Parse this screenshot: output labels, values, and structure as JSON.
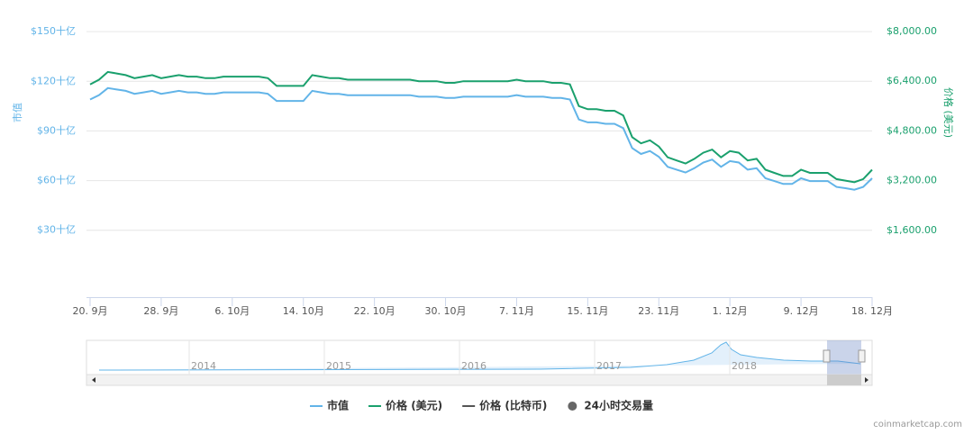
{
  "chart_data": {
    "type": "line",
    "y_axis_title": "市值",
    "y2_axis_title": "价格 (美元)",
    "categories": [
      "20. 9月",
      null,
      null,
      null,
      null,
      null,
      null,
      null,
      "28. 9月",
      null,
      null,
      null,
      null,
      null,
      null,
      null,
      "6. 10月",
      null,
      null,
      null,
      null,
      null,
      null,
      null,
      "14. 10月",
      null,
      null,
      null,
      null,
      null,
      null,
      null,
      "22. 10月",
      null,
      null,
      null,
      null,
      null,
      null,
      null,
      "30. 10月",
      null,
      null,
      null,
      null,
      null,
      null,
      null,
      "7. 11月",
      null,
      null,
      null,
      null,
      null,
      null,
      null,
      "15. 11月",
      null,
      null,
      null,
      null,
      null,
      null,
      null,
      "23. 11月",
      null,
      null,
      null,
      null,
      null,
      null,
      null,
      "1. 12月",
      null,
      null,
      null,
      null,
      null,
      null,
      null,
      "9. 12月",
      null,
      null,
      null,
      null,
      null,
      null,
      null,
      "18. 12月"
    ],
    "series": [
      {
        "name": "市值",
        "color": "#62b4e8",
        "axis": "y",
        "values": [
          109,
          111.6,
          115.9,
          115,
          114.2,
          112.4,
          113.3,
          114.2,
          112.4,
          113.3,
          114.2,
          113.3,
          113.3,
          112.4,
          112.4,
          113.3,
          113.3,
          113.3,
          113.3,
          113.3,
          112.4,
          108.1,
          108.1,
          108.1,
          108.1,
          114.2,
          113.3,
          112.4,
          112.4,
          111.6,
          111.6,
          111.6,
          111.6,
          111.6,
          111.6,
          111.6,
          111.6,
          110.7,
          110.7,
          110.7,
          109.9,
          109.9,
          110.7,
          110.7,
          110.7,
          110.7,
          110.7,
          110.7,
          111.6,
          110.7,
          110.7,
          110.7,
          109.9,
          109.9,
          109,
          96.9,
          95.2,
          95.2,
          94.3,
          94.3,
          91.7,
          79.6,
          76.1,
          77.9,
          74.4,
          68.3,
          66.6,
          64.9,
          67.5,
          70.9,
          72.7,
          68.3,
          71.8,
          70.9,
          66.6,
          67.5,
          61.4,
          59.7,
          58,
          58,
          61.4,
          59.7,
          59.7,
          59.7,
          56.2,
          55.4,
          54.5,
          56.2,
          61.4
        ]
      },
      {
        "name": "价格 (美元)",
        "color": "#1aa06d",
        "axis": "y2",
        "values": [
          6300,
          6450,
          6700,
          6650,
          6600,
          6500,
          6550,
          6600,
          6500,
          6550,
          6600,
          6550,
          6550,
          6500,
          6500,
          6550,
          6550,
          6550,
          6550,
          6550,
          6500,
          6250,
          6250,
          6250,
          6250,
          6600,
          6550,
          6500,
          6500,
          6450,
          6450,
          6450,
          6450,
          6450,
          6450,
          6450,
          6450,
          6400,
          6400,
          6400,
          6350,
          6350,
          6400,
          6400,
          6400,
          6400,
          6400,
          6400,
          6450,
          6400,
          6400,
          6400,
          6350,
          6350,
          6300,
          5600,
          5500,
          5500,
          5450,
          5450,
          5300,
          4600,
          4400,
          4500,
          4300,
          3950,
          3850,
          3750,
          3900,
          4100,
          4200,
          3950,
          4150,
          4100,
          3850,
          3900,
          3550,
          3450,
          3350,
          3350,
          3550,
          3450,
          3450,
          3450,
          3250,
          3200,
          3150,
          3250,
          3550
        ]
      }
    ],
    "legend_only_series": [
      {
        "name": "价格 (比特币)",
        "color": "#555555"
      },
      {
        "name": "24小时交易量",
        "color": "#666666"
      }
    ],
    "ylim": [
      -10,
      160
    ],
    "yticks": [
      {
        "value": 30,
        "label": "$30十亿"
      },
      {
        "value": 60,
        "label": "$60十亿"
      },
      {
        "value": 90,
        "label": "$90十亿"
      },
      {
        "value": 120,
        "label": "$120十亿"
      },
      {
        "value": 150,
        "label": "$150十亿"
      }
    ],
    "y2lim": [
      -533,
      8533
    ],
    "y2ticks": [
      {
        "value": 1600,
        "label": "$1,600.00"
      },
      {
        "value": 3200,
        "label": "$3,200.00"
      },
      {
        "value": 4800,
        "label": "$4,800.00"
      },
      {
        "value": 6400,
        "label": "$6,400.00"
      },
      {
        "value": 8000,
        "label": "$8,000.00"
      }
    ],
    "grid": true,
    "navigator": {
      "labels": [
        "2014",
        "2015",
        "2016",
        "2017",
        "2018"
      ]
    },
    "credit": "coinmarketcap.com"
  }
}
